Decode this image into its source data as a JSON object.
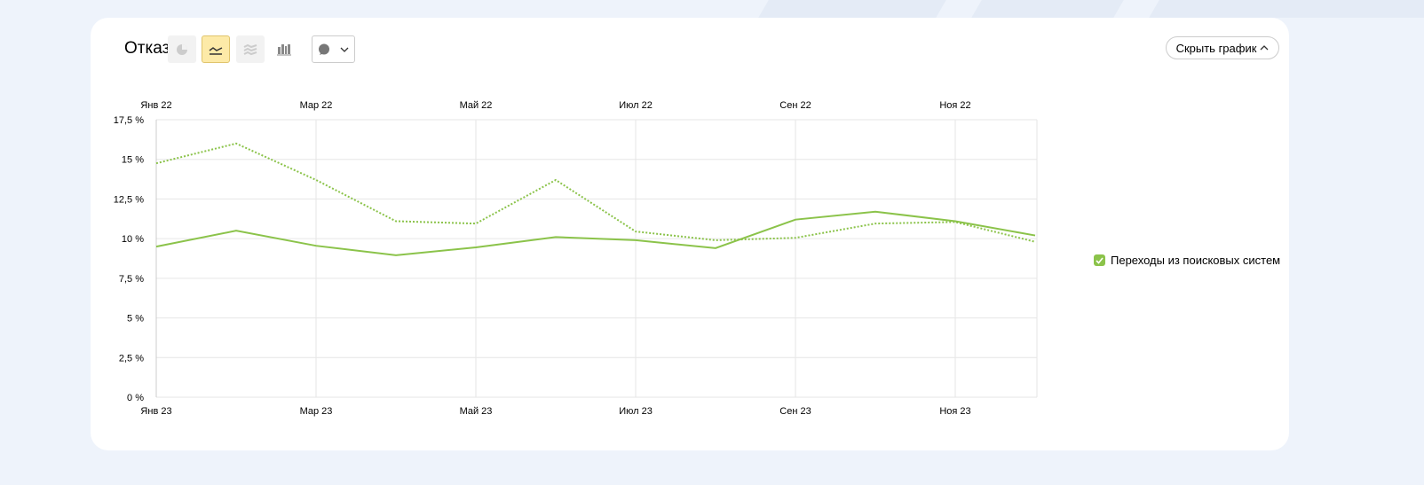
{
  "header": {
    "title": "Отказы",
    "hide_chart_label": "Скрыть график"
  },
  "toolbar": {
    "icons": [
      "pie-chart-icon",
      "line-chart-icon",
      "stacked-area-icon",
      "column-chart-icon",
      "comment-icon"
    ],
    "active": "line-chart-icon"
  },
  "colors": {
    "series": "#8bc34a",
    "active_button": "#fdeaa8"
  },
  "legend": {
    "items": [
      {
        "label": "Переходы из поисковых систем",
        "checked": true
      }
    ]
  },
  "chart_data": {
    "type": "line",
    "title": "Отказы",
    "ylabel": "",
    "xlabel": "",
    "ylim": [
      0,
      17.5
    ],
    "yticks": [
      "0 %",
      "2,5 %",
      "5 %",
      "7,5 %",
      "10 %",
      "12,5 %",
      "15 %",
      "17,5 %"
    ],
    "x_top_ticks": [
      "Янв 22",
      "Мар 22",
      "Май 22",
      "Июл 22",
      "Сен 22",
      "Ноя 22"
    ],
    "x_bottom_ticks": [
      "Янв 23",
      "Мар 23",
      "Май 23",
      "Июл 23",
      "Сен 23",
      "Ноя 23"
    ],
    "grid": true,
    "legend_position": "right",
    "series": [
      {
        "name": "Переходы из поисковых систем (2023)",
        "style": "solid",
        "values": [
          9.5,
          10.5,
          9.55,
          8.95,
          9.45,
          10.1,
          9.9,
          9.4,
          11.2,
          11.7,
          11.1,
          10.2
        ]
      },
      {
        "name": "Переходы из поисковых систем (2022)",
        "style": "dotted",
        "values": [
          14.75,
          16.0,
          13.7,
          11.1,
          10.95,
          13.7,
          10.45,
          9.9,
          10.05,
          10.95,
          11.05,
          9.8
        ]
      }
    ]
  }
}
